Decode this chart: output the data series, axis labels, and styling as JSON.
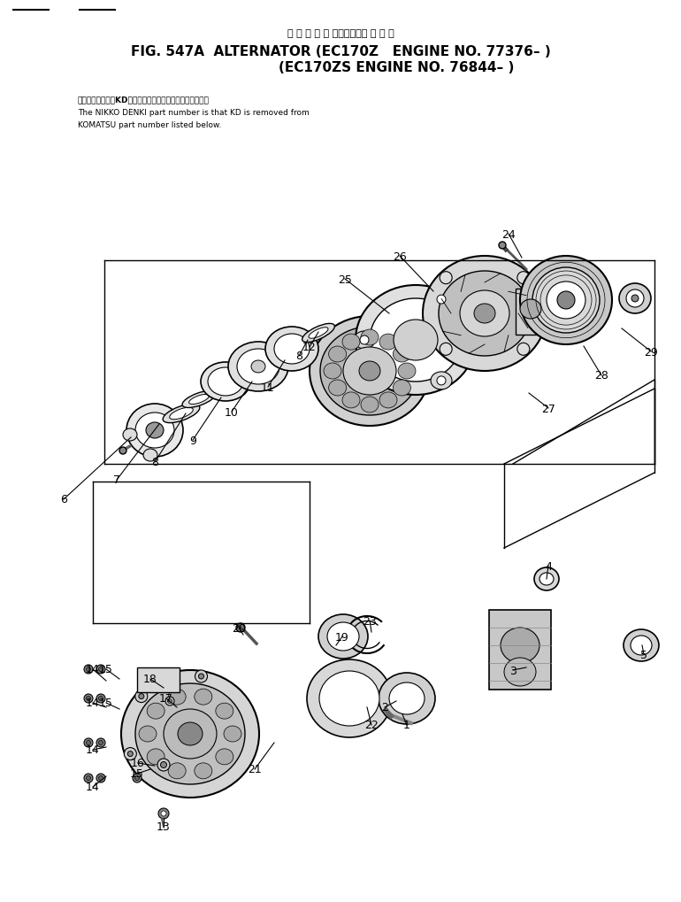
{
  "title_line1_jp": "オ ル タ ネ ー タ　　　　適 用 号 機",
  "title_line2": "FIG. 547A  ALTERNATOR (EC170Z   ENGINE NO. 77376– )",
  "title_line3": "                        (EC170ZS ENGINE NO. 76844– )",
  "note_line1_jp": "品番のメーカ記号KDを除いたものが日立電機の品番です。",
  "note_line1": "The NIKKO DENKI part number is that KD is removed from",
  "note_line2": "KOMATSU part number listed below.",
  "bg_color": "#ffffff",
  "line_color": "#000000",
  "figsize": [
    7.7,
    10.2
  ],
  "dpi": 100
}
